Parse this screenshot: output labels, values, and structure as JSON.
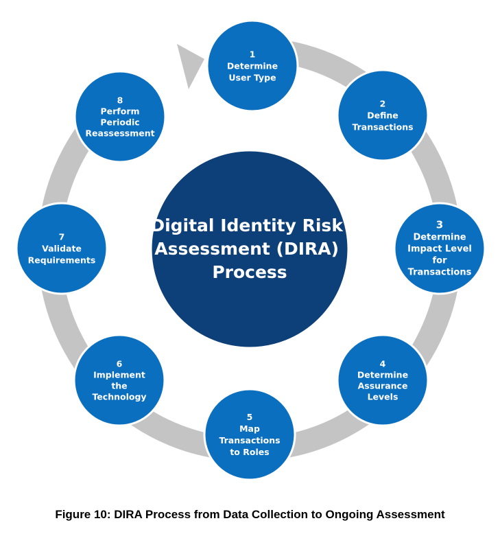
{
  "center": {
    "lines": [
      "Digital Identity Risk",
      "Assessment (DIRA)",
      "Process"
    ]
  },
  "steps": [
    {
      "number": "1",
      "lines": [
        "Determine",
        "User Type"
      ]
    },
    {
      "number": "2",
      "lines": [
        "Define",
        "Transactions"
      ]
    },
    {
      "number": "3",
      "lines": [
        "Determine",
        "Impact Level",
        "for",
        "Transactions"
      ]
    },
    {
      "number": "4",
      "lines": [
        "Determine",
        "Assurance",
        "Levels"
      ]
    },
    {
      "number": "5",
      "lines": [
        "Map",
        "Transactions",
        "to Roles"
      ]
    },
    {
      "number": "6",
      "lines": [
        "Implement",
        "the",
        "Technology"
      ]
    },
    {
      "number": "7",
      "lines": [
        "Validate",
        "Requirements"
      ]
    },
    {
      "number": "8",
      "lines": [
        "Perform",
        "Periodic",
        "Reassessment"
      ]
    }
  ],
  "caption": "Figure 10: DIRA Process from Data Collection to Ongoing Assessment",
  "colors": {
    "center_fill": "#0d3f78",
    "step_fill": "#0b6fbf",
    "step_border": "#ffffff",
    "ring": "#c4c4c4"
  }
}
